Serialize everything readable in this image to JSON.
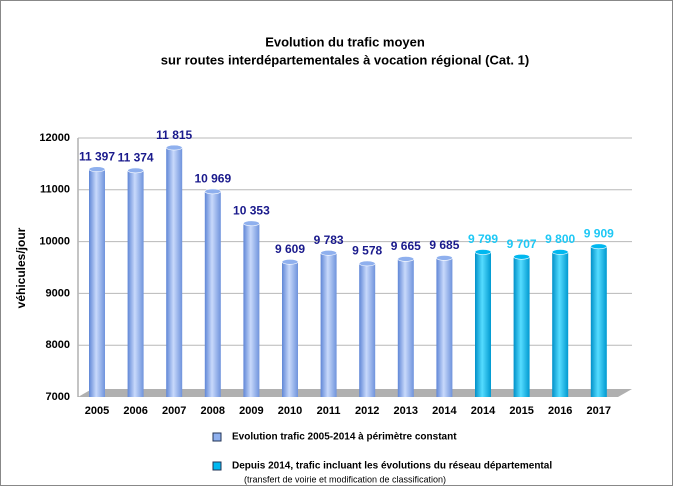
{
  "chart_data": {
    "type": "bar",
    "title": "Evolution du trafic moyen",
    "subtitle": "sur routes interdépartementales à vocation régional (Cat. 1)",
    "y_label": "véhicules/jour",
    "categories": [
      "2005",
      "2006",
      "2007",
      "2008",
      "2009",
      "2010",
      "2011",
      "2012",
      "2013",
      "2014",
      "2014",
      "2015",
      "2016",
      "2017"
    ],
    "series": [
      {
        "name": "Evolution trafic 2005-2014 à périmètre constant",
        "color": "#8fb0ee",
        "label_color": "#1a1a8c",
        "values": [
          11397,
          11374,
          11815,
          10969,
          10353,
          9609,
          9783,
          9578,
          9665,
          9685,
          null,
          null,
          null,
          null
        ],
        "value_labels": [
          "11 397",
          "11 374",
          "11 815",
          "10 969",
          "10 353",
          "9 609",
          "9 783",
          "9 578",
          "9 665",
          "9 685",
          null,
          null,
          null,
          null
        ]
      },
      {
        "name": "Depuis 2014, trafic incluant les évolutions du réseau départemental",
        "color": "#00b8f0",
        "label_color": "#1ec8f5",
        "values": [
          null,
          null,
          null,
          null,
          null,
          null,
          null,
          null,
          null,
          null,
          9799,
          9707,
          9800,
          9909
        ],
        "value_labels": [
          null,
          null,
          null,
          null,
          null,
          null,
          null,
          null,
          null,
          null,
          "9 799",
          "9 707",
          "9 800",
          "9 909"
        ]
      }
    ],
    "legend_note": "(transfert de voirie et modification de classification)",
    "ylim": [
      7000,
      12000
    ],
    "yticks": [
      7000,
      8000,
      9000,
      10000,
      11000,
      12000
    ],
    "grid": true
  }
}
